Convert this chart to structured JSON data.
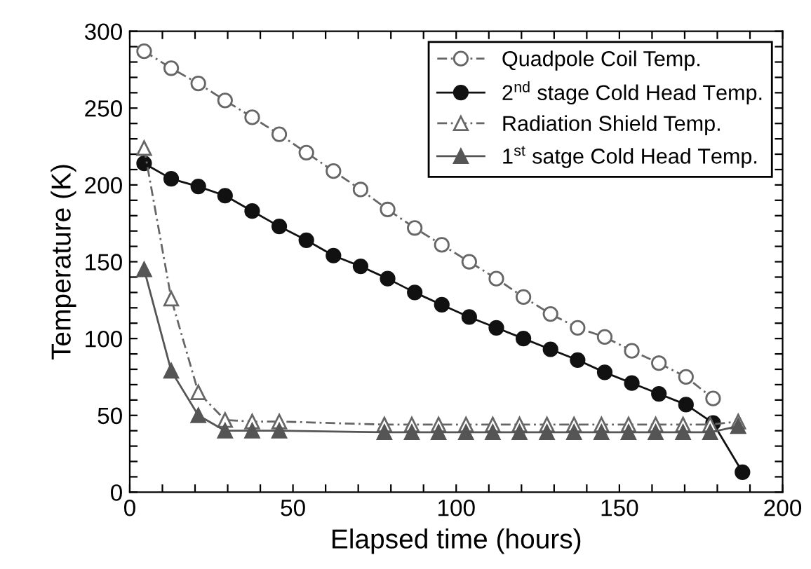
{
  "chart_data": {
    "type": "line",
    "xlabel": "Elapsed time (hours)",
    "ylabel": "Temperature (K)",
    "xlim": [
      0,
      200
    ],
    "ylim": [
      0,
      300
    ],
    "xticks": [
      0,
      {
        "value": 10,
        "label": null
      },
      {
        "value": 20,
        "label": null
      },
      {
        "value": 30,
        "label": null
      },
      {
        "value": 40,
        "label": null
      },
      50,
      {
        "value": 60,
        "label": null
      },
      {
        "value": 70,
        "label": null
      },
      {
        "value": 80,
        "label": null
      },
      {
        "value": 90,
        "label": null
      },
      100,
      {
        "value": 110,
        "label": null
      },
      {
        "value": 120,
        "label": null
      },
      {
        "value": 130,
        "label": null
      },
      {
        "value": 140,
        "label": null
      },
      150,
      {
        "value": 160,
        "label": null
      },
      {
        "value": 170,
        "label": null
      },
      {
        "value": 180,
        "label": null
      },
      {
        "value": 190,
        "label": null
      },
      200
    ],
    "yticks": [
      0,
      {
        "value": 10,
        "label": null
      },
      {
        "value": 20,
        "label": null
      },
      {
        "value": 30,
        "label": null
      },
      {
        "value": 40,
        "label": null
      },
      50,
      {
        "value": 60,
        "label": null
      },
      {
        "value": 70,
        "label": null
      },
      {
        "value": 80,
        "label": null
      },
      {
        "value": 90,
        "label": null
      },
      100,
      {
        "value": 110,
        "label": null
      },
      {
        "value": 120,
        "label": null
      },
      {
        "value": 130,
        "label": null
      },
      {
        "value": 140,
        "label": null
      },
      150,
      {
        "value": 160,
        "label": null
      },
      {
        "value": 170,
        "label": null
      },
      {
        "value": 180,
        "label": null
      },
      {
        "value": 190,
        "label": null
      },
      200,
      {
        "value": 210,
        "label": null
      },
      {
        "value": 220,
        "label": null
      },
      {
        "value": 230,
        "label": null
      },
      {
        "value": 240,
        "label": null
      },
      250,
      {
        "value": 260,
        "label": null
      },
      {
        "value": 270,
        "label": null
      },
      {
        "value": 280,
        "label": null
      },
      {
        "value": 290,
        "label": null
      },
      300
    ],
    "grid": false,
    "legend": "top right",
    "series": [
      {
        "name": "Quadpole Coil Temp.",
        "color": "#666666",
        "marker": "circle",
        "line_style": "dashed",
        "x": [
          4.4,
          12.7,
          21,
          29.2,
          37.5,
          45.8,
          54.1,
          62.4,
          70.7,
          79,
          87.3,
          95.6,
          104,
          112.3,
          120.6,
          128.9,
          137.2,
          145.5,
          153.8,
          162.1,
          170.4,
          178.7
        ],
        "values": [
          287,
          276,
          266,
          255,
          244,
          233,
          221,
          209,
          197,
          184,
          172,
          161,
          150,
          139,
          127,
          116,
          107,
          101,
          92,
          84,
          75,
          61
        ]
      },
      {
        "name": "2$^{nd}$ stage Cold Head Temp.",
        "color": "#111111",
        "marker": "circle",
        "line_style": "solid",
        "x": [
          4.4,
          12.7,
          21,
          29.2,
          37.5,
          45.8,
          54.1,
          62.4,
          70.7,
          79,
          87.3,
          95.6,
          104,
          112.3,
          120.6,
          128.9,
          137.2,
          145.5,
          153.8,
          162.1,
          170.4,
          178.7,
          187.7
        ],
        "values": [
          214,
          204,
          199,
          193,
          183,
          173,
          164,
          154,
          147,
          139,
          130,
          122,
          114,
          107,
          100,
          93,
          86,
          78,
          71,
          64,
          57,
          45,
          13
        ]
      },
      {
        "name": "Radiation Shield Temp.",
        "color": "#666666",
        "marker": "triangle",
        "line_style": "dashed",
        "x": [
          4.4,
          12.7,
          21,
          29.2,
          37.5,
          45.8,
          78,
          86.4,
          94.6,
          103,
          111.2,
          119.4,
          127.8,
          136.1,
          144.5,
          152.8,
          161.1,
          169.5,
          177.8,
          186.4
        ],
        "values": [
          224,
          126,
          65,
          47,
          46,
          46,
          44,
          44,
          44,
          44,
          44,
          44,
          44,
          44,
          44,
          44,
          44,
          44,
          44,
          46
        ]
      },
      {
        "name": "1$^{st}$ satge Cold Head Temp.",
        "color": "#555555",
        "marker": "triangle",
        "line_style": "solid",
        "x": [
          4.4,
          12.7,
          21,
          29.2,
          37.5,
          45.8,
          78,
          86.4,
          94.6,
          103,
          111.2,
          119.4,
          127.8,
          136.1,
          144.5,
          152.8,
          161.1,
          169.5,
          177.8,
          186.4
        ],
        "values": [
          145,
          79,
          50,
          40,
          40,
          40,
          39,
          39,
          39,
          39,
          39,
          39,
          39,
          39,
          39,
          39,
          39,
          39,
          39,
          43
        ]
      }
    ]
  }
}
